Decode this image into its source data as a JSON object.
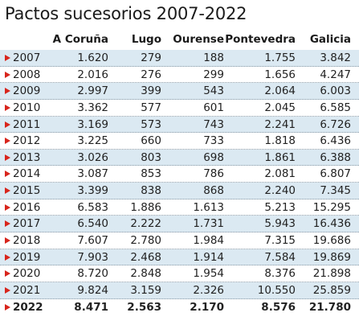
{
  "title": "Pactos sucesorios 2007-2022",
  "columns": {
    "coruna": "A Coruña",
    "lugo": "Lugo",
    "ourense": "Ourense",
    "pontevedra": "Pontevedra",
    "galicia": "Galicia"
  },
  "colors": {
    "marker": "#d8251c",
    "row_shade": "#dbe9f2"
  },
  "rows": [
    {
      "year": "2007",
      "coruna": "1.620",
      "lugo": "279",
      "ourense": "188",
      "pontevedra": "1.755",
      "galicia": "3.842"
    },
    {
      "year": "2008",
      "coruna": "2.016",
      "lugo": "276",
      "ourense": "299",
      "pontevedra": "1.656",
      "galicia": "4.247"
    },
    {
      "year": "2009",
      "coruna": "2.997",
      "lugo": "399",
      "ourense": "543",
      "pontevedra": "2.064",
      "galicia": "6.003"
    },
    {
      "year": "2010",
      "coruna": "3.362",
      "lugo": "577",
      "ourense": "601",
      "pontevedra": "2.045",
      "galicia": "6.585"
    },
    {
      "year": "2011",
      "coruna": "3.169",
      "lugo": "573",
      "ourense": "743",
      "pontevedra": "2.241",
      "galicia": "6.726"
    },
    {
      "year": "2012",
      "coruna": "3.225",
      "lugo": "660",
      "ourense": "733",
      "pontevedra": "1.818",
      "galicia": "6.436"
    },
    {
      "year": "2013",
      "coruna": "3.026",
      "lugo": "803",
      "ourense": "698",
      "pontevedra": "1.861",
      "galicia": "6.388"
    },
    {
      "year": "2014",
      "coruna": "3.087",
      "lugo": "853",
      "ourense": "786",
      "pontevedra": "2.081",
      "galicia": "6.807"
    },
    {
      "year": "2015",
      "coruna": "3.399",
      "lugo": "838",
      "ourense": "868",
      "pontevedra": "2.240",
      "galicia": "7.345"
    },
    {
      "year": "2016",
      "coruna": "6.583",
      "lugo": "1.886",
      "ourense": "1.613",
      "pontevedra": "5.213",
      "galicia": "15.295"
    },
    {
      "year": "2017",
      "coruna": "6.540",
      "lugo": "2.222",
      "ourense": "1.731",
      "pontevedra": "5.943",
      "galicia": "16.436"
    },
    {
      "year": "2018",
      "coruna": "7.607",
      "lugo": "2.780",
      "ourense": "1.984",
      "pontevedra": "7.315",
      "galicia": "19.686"
    },
    {
      "year": "2019",
      "coruna": "7.903",
      "lugo": "2.468",
      "ourense": "1.914",
      "pontevedra": "7.584",
      "galicia": "19.869"
    },
    {
      "year": "2020",
      "coruna": "8.720",
      "lugo": "2.848",
      "ourense": "1.954",
      "pontevedra": "8.376",
      "galicia": "21.898"
    },
    {
      "year": "2021",
      "coruna": "9.824",
      "lugo": "3.159",
      "ourense": "2.326",
      "pontevedra": "10.550",
      "galicia": "25.859"
    },
    {
      "year": "2022",
      "coruna": "8.471",
      "lugo": "2.563",
      "ourense": "2.170",
      "pontevedra": "8.576",
      "galicia": "21.780"
    }
  ]
}
